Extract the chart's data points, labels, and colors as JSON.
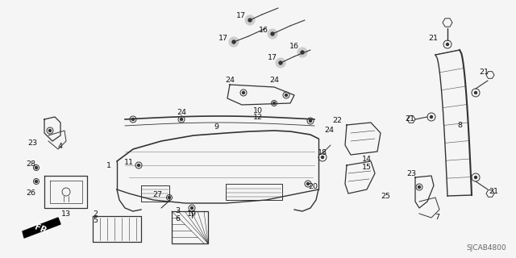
{
  "diagram_id": "SJCAB4800",
  "background": "#f5f5f5",
  "line_color": "#333333",
  "text_color": "#111111",
  "fig_width": 6.4,
  "fig_height": 3.2,
  "dpi": 100
}
